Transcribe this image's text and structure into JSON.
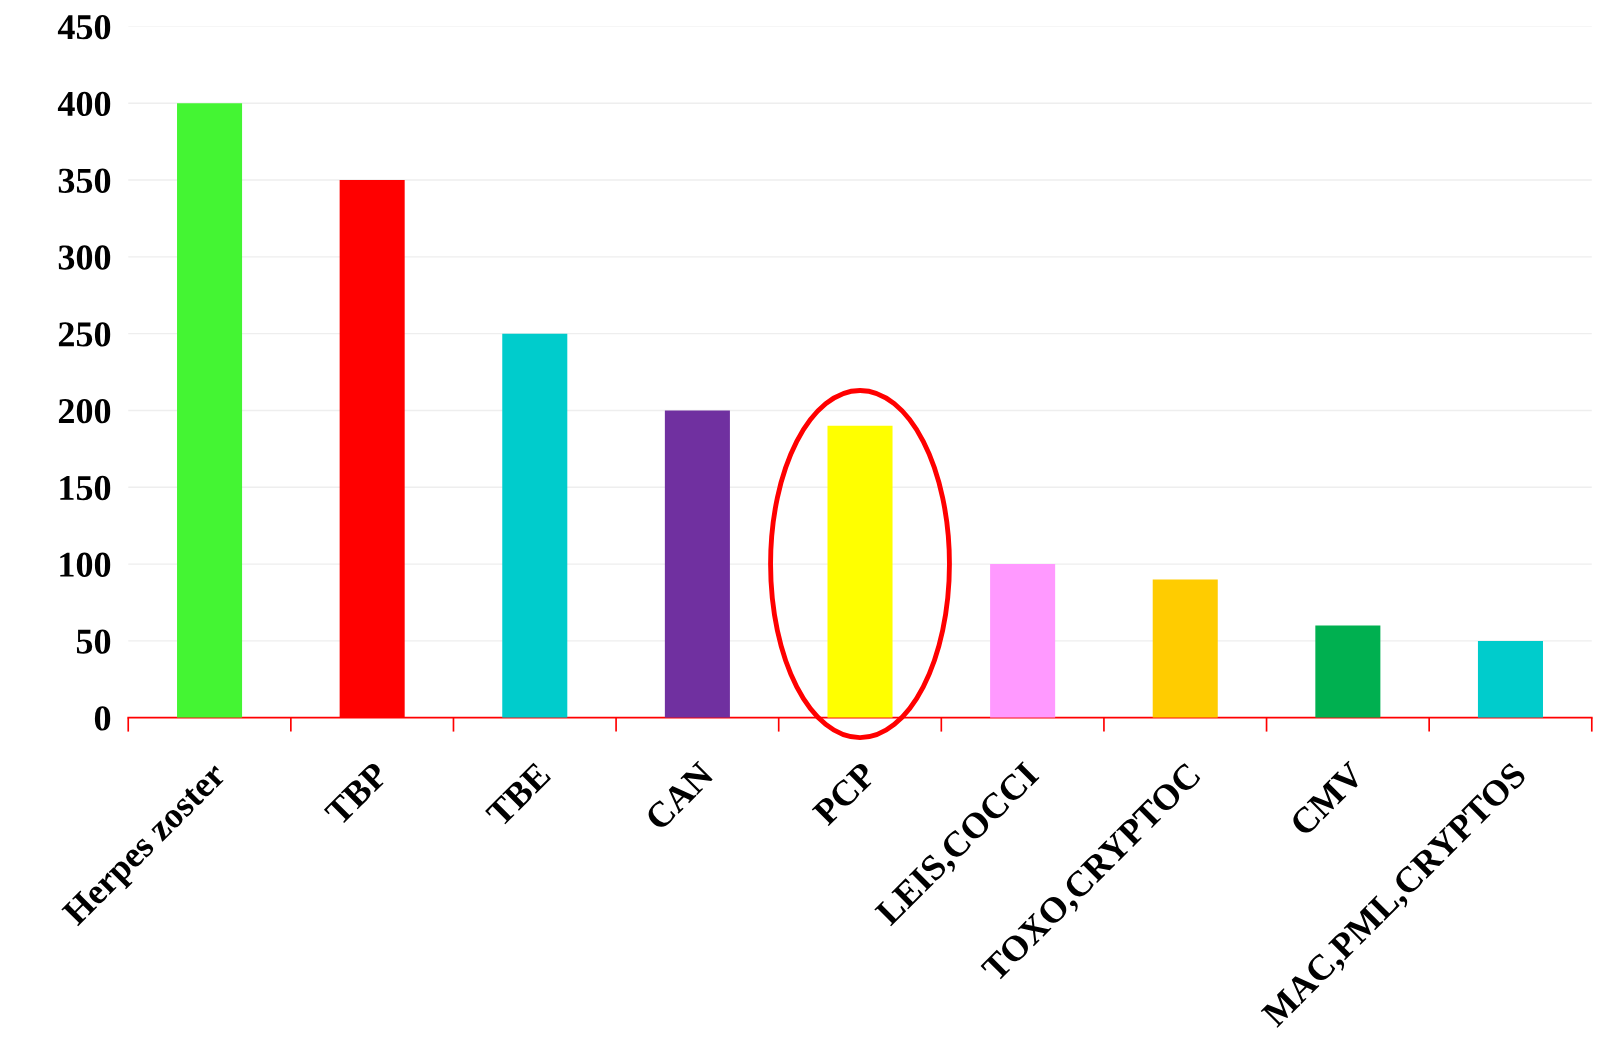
{
  "chart_data": {
    "type": "bar",
    "categories": [
      "Herpes zoster",
      "TBP",
      "TBE",
      "CAN",
      "PCP",
      "LEIS,COCCI",
      "TOXO,CRYPTOC",
      "CMV",
      "MAC,PML,CRYPTOS"
    ],
    "values": [
      400,
      350,
      250,
      200,
      190,
      100,
      90,
      60,
      50
    ],
    "colors": [
      "#44f533",
      "#ff0000",
      "#00cccc",
      "#7030a0",
      "#ffff00",
      "#ff99ff",
      "#ffcc00",
      "#00b050",
      "#00cccc"
    ],
    "ylim": [
      0,
      450
    ],
    "yticks": [
      0,
      50,
      100,
      150,
      200,
      250,
      300,
      350,
      400,
      450
    ],
    "grid": "y"
  }
}
